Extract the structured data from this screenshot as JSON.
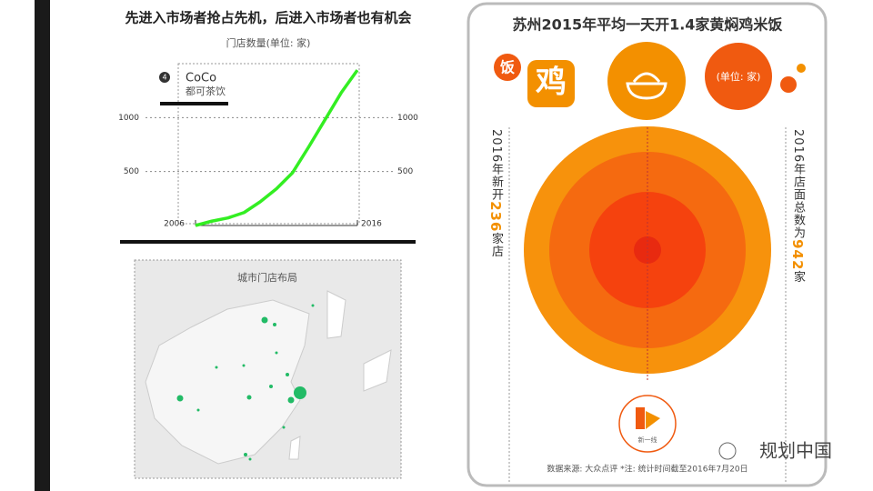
{
  "chart_data": {
    "type": "line",
    "title": "先进入市场者抢占先机，后进入市场者也有机会",
    "subtitle": "门店数量(单位: 家)",
    "x": [
      2006,
      2007,
      2008,
      2009,
      2010,
      2011,
      2012,
      2013,
      2014,
      2015,
      2016
    ],
    "series": [
      {
        "name": "CoCo",
        "subname": "都可茶饮",
        "badge": "4",
        "color": "#33ee22",
        "values": [
          0,
          40,
          70,
          120,
          220,
          340,
          490,
          730,
          980,
          1230,
          1440
        ]
      }
    ],
    "xlim": [
      2006,
      2016
    ],
    "xticks": [
      2006,
      2016
    ],
    "ylim": [
      0,
      1500
    ],
    "yticks": [
      500,
      1000
    ]
  },
  "map": {
    "title": "城市门店布局"
  },
  "infographic": {
    "title": "苏州2015年平均一天开1.4家黄焖鸡米饭",
    "badge_fan": "饭",
    "badge_ji": "鸡",
    "unit": "(单位: 家)",
    "left_pre": "2016年新开",
    "left_num": "236",
    "left_post": "家店",
    "right_pre": "2016年店面总数为",
    "right_num": "942",
    "right_post": "家",
    "logo": "新一线",
    "source": "数据来源: 大众点评  *注: 统计时间截至2016年7月20日"
  },
  "watermark": "规划中国"
}
